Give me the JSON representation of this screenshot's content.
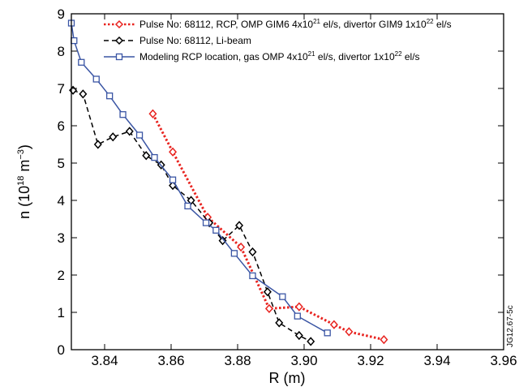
{
  "chart_data": {
    "type": "line",
    "xlabel": "R (m)",
    "ylabel": {
      "base": "n (10",
      "exp1": "18",
      "mid": " m",
      "exp2": "−3",
      "end": ")"
    },
    "xlim": [
      3.83,
      3.96
    ],
    "ylim": [
      0,
      9
    ],
    "x_ticks": [
      "3.84",
      "3.86",
      "3.88",
      "3.90",
      "3.92",
      "3.94",
      "3.96"
    ],
    "y_ticks": [
      "0",
      "1",
      "2",
      "3",
      "4",
      "5",
      "6",
      "7",
      "8",
      "9"
    ],
    "x_tick_values": [
      3.84,
      3.86,
      3.88,
      3.9,
      3.92,
      3.94,
      3.96
    ],
    "y_tick_values": [
      0,
      1,
      2,
      3,
      4,
      5,
      6,
      7,
      8,
      9
    ],
    "grid": false,
    "legend_position": "top-right",
    "figure_id": "JG12.67-5c",
    "series": [
      {
        "name_parts": [
          "Pulse No: 68112, RCP, OMP GIM6 4x10",
          "21",
          " el/s, divertor GIM9 1x10",
          "22",
          " el/s"
        ],
        "color": "#e8231f",
        "style": "dotted",
        "marker": "diamond",
        "points": [
          [
            3.8545,
            6.32
          ],
          [
            3.8605,
            5.3
          ],
          [
            3.871,
            3.55
          ],
          [
            3.881,
            2.75
          ],
          [
            3.8895,
            1.1
          ],
          [
            3.8985,
            1.15
          ],
          [
            3.909,
            0.67
          ],
          [
            3.9135,
            0.48
          ],
          [
            3.924,
            0.27
          ]
        ]
      },
      {
        "name": "Pulse No: 68112, Li-beam",
        "color": "#000000",
        "style": "dashed",
        "marker": "diamond",
        "points": [
          [
            3.8305,
            6.95
          ],
          [
            3.8335,
            6.85
          ],
          [
            3.838,
            5.5
          ],
          [
            3.8425,
            5.7
          ],
          [
            3.8475,
            5.85
          ],
          [
            3.8525,
            5.2
          ],
          [
            3.857,
            4.95
          ],
          [
            3.8605,
            4.4
          ],
          [
            3.866,
            4.0
          ],
          [
            3.8715,
            3.4
          ],
          [
            3.8755,
            2.92
          ],
          [
            3.8805,
            3.33
          ],
          [
            3.8845,
            2.62
          ],
          [
            3.889,
            1.55
          ],
          [
            3.8925,
            0.72
          ],
          [
            3.8985,
            0.38
          ],
          [
            3.902,
            0.22
          ]
        ]
      },
      {
        "name_parts": [
          "Modeling RCP location, gas OMP 4x10",
          "21",
          " el/s, divertor 1x10",
          "22",
          " el/s"
        ],
        "color": "#3a55a4",
        "style": "solid",
        "marker": "square",
        "points": [
          [
            3.83,
            8.75
          ],
          [
            3.8308,
            8.28
          ],
          [
            3.833,
            7.7
          ],
          [
            3.8375,
            7.25
          ],
          [
            3.8415,
            6.8
          ],
          [
            3.8455,
            6.3
          ],
          [
            3.8505,
            5.75
          ],
          [
            3.855,
            5.15
          ],
          [
            3.8605,
            4.55
          ],
          [
            3.865,
            3.85
          ],
          [
            3.8705,
            3.4
          ],
          [
            3.8735,
            3.2
          ],
          [
            3.879,
            2.58
          ],
          [
            3.8845,
            1.98
          ],
          [
            3.8935,
            1.42
          ],
          [
            3.898,
            0.9
          ],
          [
            3.907,
            0.45
          ]
        ]
      }
    ]
  }
}
